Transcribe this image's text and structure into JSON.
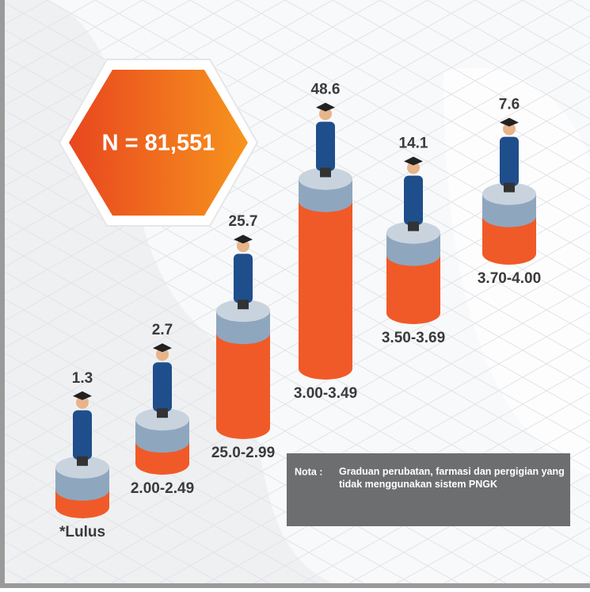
{
  "chart_data": {
    "type": "bar",
    "annotation": "N = 81,551",
    "categories": [
      "*Lulus",
      "2.00-2.49",
      "25.0-2.99",
      "3.00-3.49",
      "3.50-3.69",
      "3.70-4.00"
    ],
    "values": [
      1.3,
      2.7,
      25.7,
      48.6,
      14.1,
      7.6
    ],
    "color": "#f05a28",
    "note_label": "Nota :",
    "note": "Graduan perubatan, farmasi dan pergigian yang tidak menggunakan sistem PNGK"
  }
}
